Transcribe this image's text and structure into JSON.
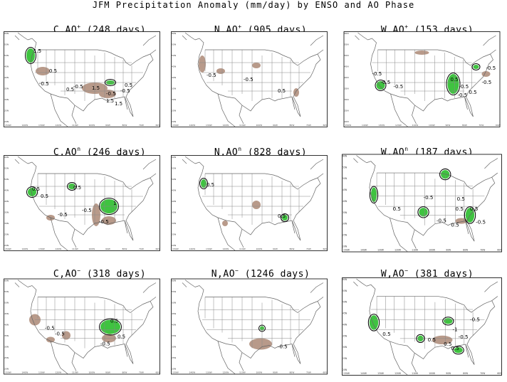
{
  "title": "JFM Precipitation Anomaly (mm/day) by ENSO and AO Phase",
  "panels": [
    {
      "phase": "C,AO",
      "ao": "+",
      "days": "(248 days)",
      "labels": [
        "1.5",
        "0.5",
        "-0.5",
        "0.5",
        "-0.5",
        "1.5",
        "-0.5",
        "1.5",
        "1.5",
        "-0.5",
        "0.5"
      ]
    },
    {
      "phase": "N,AO",
      "ao": "+",
      "days": "(905 days)",
      "labels": [
        "-0.5",
        "-0.5",
        "0.5"
      ]
    },
    {
      "phase": "W,AO",
      "ao": "+",
      "days": "(153 days)",
      "labels": [
        "-0.5",
        "-0.5",
        "-0.5",
        "0.5",
        "-0.5",
        "-0.5",
        "0.5",
        "-0.5",
        "-0.5"
      ]
    },
    {
      "phase": "C,AO",
      "ao": "n",
      "days": "(246 days)",
      "labels": [
        "0.5",
        "0.5",
        "0.5",
        "-0.5",
        "1",
        "-0.5",
        "-0.5"
      ]
    },
    {
      "phase": "N,AO",
      "ao": "n",
      "days": "(828 days)",
      "labels": [
        "0.5",
        "0.5"
      ]
    },
    {
      "phase": "W,AO",
      "ao": "n",
      "days": "(187 days)",
      "labels": [
        "0.5",
        "-0.5",
        "0.5",
        "-0.5",
        "0.5",
        "-0.5",
        "0.5",
        "0.5"
      ]
    },
    {
      "phase": "C,AO",
      "ao": "−",
      "days": "(318 days)",
      "labels": [
        "0.5",
        "-0.5",
        "-0.5",
        "0.5",
        "-0.5"
      ]
    },
    {
      "phase": "N,AO",
      "ao": "−",
      "days": "(1246 days)",
      "labels": [
        "-0.5"
      ]
    },
    {
      "phase": "W,AO",
      "ao": "−",
      "days": "(381 days)",
      "labels": [
        "-0.5",
        "-1",
        "-0.5",
        "0.5",
        "0.5",
        "0.5",
        "0.5"
      ]
    }
  ],
  "colors": {
    "wet": "#3fc340",
    "dry": "#b89a8a",
    "coast": "#666666",
    "state": "#888888"
  }
}
